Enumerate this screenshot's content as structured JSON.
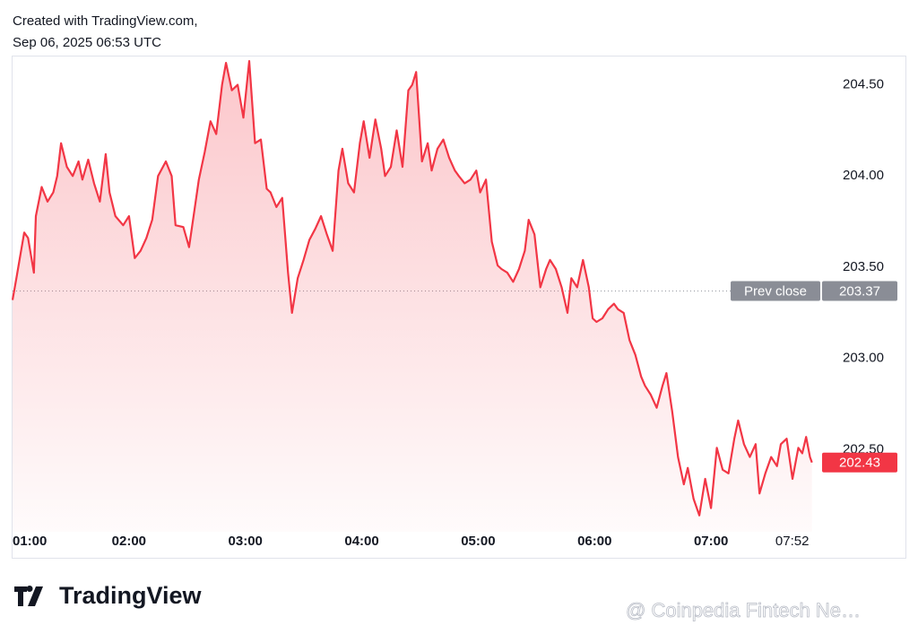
{
  "header": {
    "line1": "Created with TradingView.com,",
    "line2": "Sep 06, 2025 06:53 UTC"
  },
  "footer": {
    "logo_text": "TradingView",
    "watermark": "@ Coinpedia Fintech Ne…"
  },
  "chart_data": {
    "type": "area",
    "color": "#f23645",
    "x": [
      "01:00",
      "01:02",
      "01:06",
      "01:08",
      "01:11",
      "01:12",
      "01:15",
      "01:18",
      "01:21",
      "01:23",
      "01:25",
      "01:28",
      "01:31",
      "01:34",
      "01:36",
      "01:39",
      "01:42",
      "01:45",
      "01:48",
      "01:50",
      "01:53",
      "01:57",
      "02:00",
      "02:03",
      "02:06",
      "02:09",
      "02:12",
      "02:15",
      "02:19",
      "02:22",
      "02:24",
      "02:28",
      "02:31",
      "02:34",
      "02:36",
      "02:39",
      "02:42",
      "02:45",
      "02:48",
      "02:50",
      "02:53",
      "02:56",
      "02:59",
      "03:02",
      "03:05",
      "03:08",
      "03:11",
      "03:13",
      "03:16",
      "03:19",
      "03:22",
      "03:24",
      "03:27",
      "03:30",
      "03:33",
      "03:36",
      "03:39",
      "03:42",
      "03:45",
      "03:48",
      "03:50",
      "03:53",
      "03:56",
      "03:59",
      "04:01",
      "04:04",
      "04:07",
      "04:10",
      "04:12",
      "04:15",
      "04:18",
      "04:21",
      "04:24",
      "04:26",
      "04:28",
      "04:31",
      "04:34",
      "04:36",
      "04:39",
      "04:42",
      "04:45",
      "04:48",
      "04:50",
      "04:53",
      "04:56",
      "04:59",
      "05:01",
      "05:04",
      "05:07",
      "05:10",
      "05:12",
      "05:15",
      "05:18",
      "05:21",
      "05:24",
      "05:26",
      "05:29",
      "05:32",
      "05:35",
      "05:37",
      "05:40",
      "05:43",
      "05:46",
      "05:48",
      "05:51",
      "05:54",
      "05:57",
      "05:59",
      "06:01",
      "06:04",
      "06:07",
      "06:10",
      "06:12",
      "06:15",
      "06:18",
      "06:21",
      "06:24",
      "06:26",
      "06:29",
      "06:32",
      "06:35",
      "06:37",
      "06:40",
      "06:43",
      "06:46",
      "06:48",
      "06:51",
      "06:54",
      "06:57",
      "07:00",
      "07:03",
      "07:06",
      "07:09",
      "07:12",
      "07:14",
      "07:17",
      "07:20",
      "07:23",
      "07:25",
      "07:28",
      "07:31",
      "07:34",
      "07:36",
      "07:39",
      "07:42",
      "07:45",
      "07:47",
      "07:49",
      "07:51",
      "07:52"
    ],
    "values": [
      203.32,
      203.44,
      203.69,
      203.66,
      203.47,
      203.78,
      203.94,
      203.86,
      203.91,
      204.0,
      204.18,
      204.05,
      204.0,
      204.08,
      203.98,
      204.09,
      203.96,
      203.86,
      204.12,
      203.91,
      203.78,
      203.73,
      203.78,
      203.55,
      203.59,
      203.66,
      203.76,
      204.0,
      204.08,
      204.0,
      203.73,
      203.72,
      203.61,
      203.83,
      203.98,
      204.13,
      204.3,
      204.23,
      204.5,
      204.62,
      204.47,
      204.5,
      204.32,
      204.63,
      204.18,
      204.2,
      203.93,
      203.91,
      203.83,
      203.88,
      203.47,
      203.25,
      203.44,
      203.54,
      203.65,
      203.71,
      203.78,
      203.68,
      203.59,
      204.03,
      204.15,
      203.96,
      203.91,
      204.18,
      204.3,
      204.1,
      204.31,
      204.15,
      204.0,
      204.05,
      204.25,
      204.05,
      204.47,
      204.5,
      204.57,
      204.08,
      204.18,
      204.03,
      204.15,
      204.2,
      204.1,
      204.03,
      204.0,
      203.96,
      203.98,
      204.03,
      203.91,
      203.98,
      203.64,
      203.51,
      203.49,
      203.47,
      203.42,
      203.49,
      203.59,
      203.76,
      203.68,
      203.39,
      203.49,
      203.54,
      203.49,
      203.39,
      203.25,
      203.44,
      203.39,
      203.54,
      203.39,
      203.22,
      203.2,
      203.22,
      203.27,
      203.3,
      203.27,
      203.25,
      203.1,
      203.02,
      202.9,
      202.85,
      202.8,
      202.73,
      202.85,
      202.92,
      202.71,
      202.46,
      202.31,
      202.4,
      202.23,
      202.14,
      202.34,
      202.18,
      202.51,
      202.39,
      202.37,
      202.56,
      202.66,
      202.53,
      202.46,
      202.53,
      202.26,
      202.37,
      202.46,
      202.41,
      202.53,
      202.56,
      202.34,
      202.51,
      202.48,
      202.57,
      202.46,
      202.43
    ],
    "xlim": [
      "01:00",
      "07:54"
    ],
    "xticks": [
      "01:00",
      "02:00",
      "03:00",
      "04:00",
      "05:00",
      "06:00",
      "07:00",
      "07:52"
    ],
    "ylim": [
      202.05,
      204.66
    ],
    "yticks": [
      {
        "value": 202.5,
        "label": "202.50"
      },
      {
        "value": 203,
        "label": "203.00"
      },
      {
        "value": 203.5,
        "label": "203.50"
      },
      {
        "value": 204,
        "label": "204.00"
      },
      {
        "value": 204.5,
        "label": "204.50"
      }
    ],
    "prev_close_label": "Prev close",
    "prev_close": 203.37
  }
}
